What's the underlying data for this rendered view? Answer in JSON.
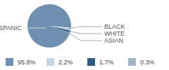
{
  "chart_data": {
    "type": "pie",
    "categories": [
      "HISPANIC",
      "BLACK",
      "WHITE",
      "ASIAN"
    ],
    "values": [
      95.8,
      2.2,
      1.7,
      0.3
    ],
    "value_labels": [
      "95.8%",
      "2.2%",
      "1.7%",
      "0.3%"
    ],
    "colors": [
      "#6f90b0",
      "#c5d5e4",
      "#2f5b82",
      "#a3b6c8"
    ],
    "legend": "bottom"
  }
}
